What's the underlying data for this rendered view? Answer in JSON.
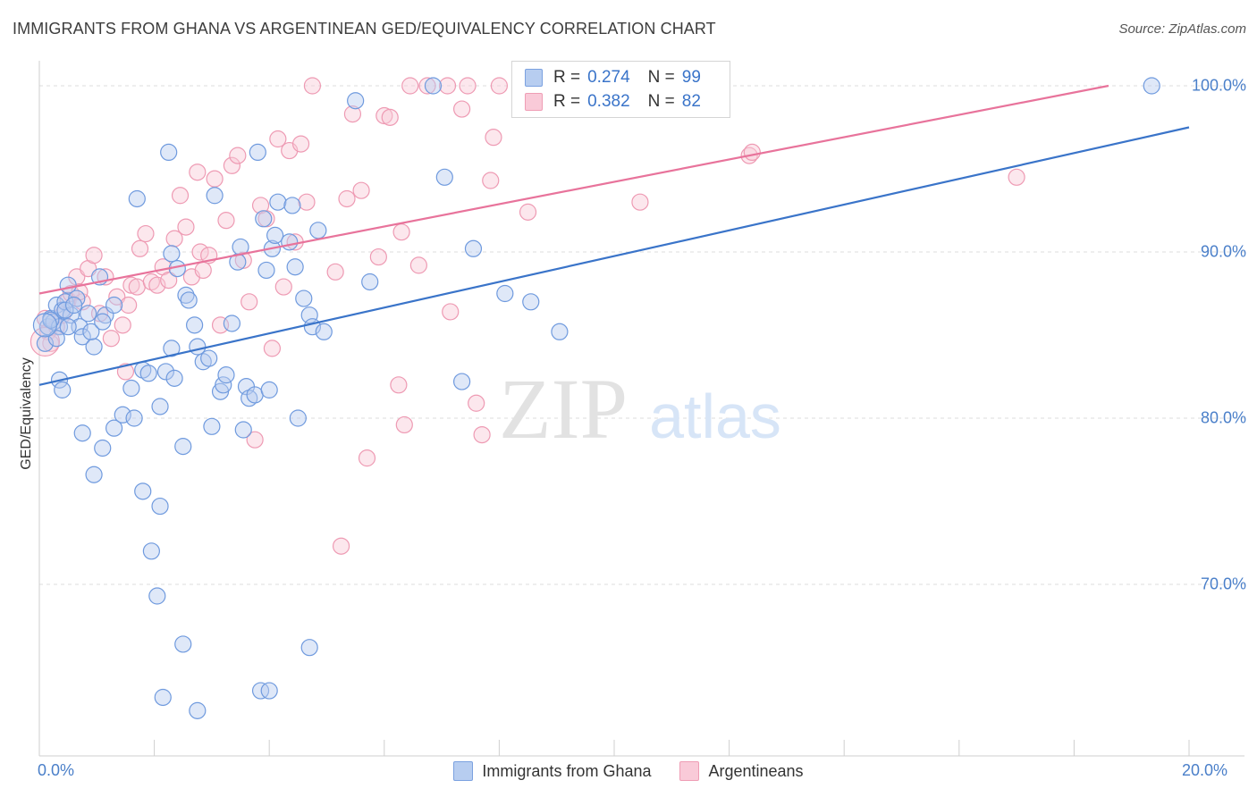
{
  "title": "IMMIGRANTS FROM GHANA VS ARGENTINEAN GED/EQUIVALENCY CORRELATION CHART",
  "source": "Source: ZipAtlas.com",
  "watermark": {
    "zip": "ZIP",
    "atlas": "atlas"
  },
  "colors": {
    "blue": "#3a74c9",
    "blue_fill": "#b7cdf0",
    "pink": "#e8739b",
    "pink_fill": "#f9cad8",
    "grid": "#dddddd",
    "tick_text": "#4a7fc9"
  },
  "stats": {
    "blue": {
      "r_label": "R =",
      "r_value": "0.274",
      "n_label": "N =",
      "n_value": "99"
    },
    "pink": {
      "r_label": "R =",
      "r_value": "0.382",
      "n_label": "N =",
      "n_value": "82"
    }
  },
  "legend": {
    "blue": "Immigrants from Ghana",
    "pink": "Argentineans"
  },
  "chart_data": {
    "type": "scatter",
    "title": "IMMIGRANTS FROM GHANA VS ARGENTINEAN GED/EQUIVALENCY CORRELATION CHART",
    "xlabel": "",
    "ylabel": "GED/Equivalency",
    "xlim": [
      0,
      20
    ],
    "ylim": [
      60.5,
      101.5
    ],
    "x_tick_labels": {
      "min": "0.0%",
      "max": "20.0%"
    },
    "y_ticks": [
      {
        "value": 100,
        "label": "100.0%"
      },
      {
        "value": 90,
        "label": "90.0%"
      },
      {
        "value": 80,
        "label": "80.0%"
      },
      {
        "value": 70,
        "label": "70.0%"
      }
    ],
    "legend_position": "bottom",
    "series": [
      {
        "name": "Immigrants from Ghana",
        "color": "#3a74c9",
        "trend": {
          "x": [
            0,
            20
          ],
          "y": [
            82.0,
            97.5
          ]
        },
        "points": [
          [
            0.1,
            84.5
          ],
          [
            0.15,
            85.5
          ],
          [
            0.2,
            86.0
          ],
          [
            0.25,
            85.8
          ],
          [
            0.3,
            86.8
          ],
          [
            0.35,
            85.5
          ],
          [
            0.4,
            86.5
          ],
          [
            0.45,
            87.0
          ],
          [
            0.5,
            88.0
          ],
          [
            0.55,
            86.2
          ],
          [
            0.65,
            87.2
          ],
          [
            0.7,
            85.5
          ],
          [
            0.75,
            84.9
          ],
          [
            0.85,
            86.3
          ],
          [
            0.95,
            84.3
          ],
          [
            1.05,
            88.5
          ],
          [
            1.15,
            86.2
          ],
          [
            1.3,
            86.8
          ],
          [
            0.35,
            82.3
          ],
          [
            0.4,
            81.7
          ],
          [
            0.75,
            79.1
          ],
          [
            0.95,
            76.6
          ],
          [
            1.1,
            78.2
          ],
          [
            1.3,
            79.4
          ],
          [
            1.45,
            80.2
          ],
          [
            1.65,
            80.0
          ],
          [
            1.8,
            75.6
          ],
          [
            1.95,
            72.0
          ],
          [
            2.05,
            69.3
          ],
          [
            2.1,
            74.7
          ],
          [
            1.6,
            81.8
          ],
          [
            1.8,
            82.9
          ],
          [
            1.9,
            82.7
          ],
          [
            2.1,
            80.7
          ],
          [
            2.2,
            82.8
          ],
          [
            2.3,
            84.2
          ],
          [
            2.35,
            82.4
          ],
          [
            2.5,
            78.3
          ],
          [
            2.4,
            89.0
          ],
          [
            2.3,
            89.9
          ],
          [
            2.55,
            87.4
          ],
          [
            2.6,
            87.1
          ],
          [
            2.7,
            85.6
          ],
          [
            2.75,
            84.3
          ],
          [
            2.85,
            83.4
          ],
          [
            2.95,
            83.6
          ],
          [
            3.0,
            79.5
          ],
          [
            3.05,
            93.4
          ],
          [
            3.15,
            81.6
          ],
          [
            3.2,
            82.0
          ],
          [
            3.25,
            82.6
          ],
          [
            3.35,
            85.7
          ],
          [
            3.45,
            89.4
          ],
          [
            3.5,
            90.3
          ],
          [
            3.55,
            79.3
          ],
          [
            3.6,
            81.9
          ],
          [
            3.65,
            81.2
          ],
          [
            3.75,
            81.4
          ],
          [
            3.8,
            96.0
          ],
          [
            3.9,
            92.0
          ],
          [
            3.95,
            88.9
          ],
          [
            4.0,
            81.7
          ],
          [
            4.05,
            90.2
          ],
          [
            4.1,
            91.0
          ],
          [
            4.15,
            93.0
          ],
          [
            4.35,
            90.6
          ],
          [
            4.4,
            92.8
          ],
          [
            4.45,
            89.1
          ],
          [
            4.5,
            80.0
          ],
          [
            4.6,
            87.2
          ],
          [
            4.7,
            86.2
          ],
          [
            4.75,
            85.5
          ],
          [
            4.85,
            91.3
          ],
          [
            4.95,
            85.2
          ],
          [
            5.5,
            99.1
          ],
          [
            5.75,
            88.2
          ],
          [
            6.85,
            100.0
          ],
          [
            7.05,
            94.5
          ],
          [
            7.35,
            82.2
          ],
          [
            7.55,
            90.2
          ],
          [
            8.1,
            87.5
          ],
          [
            8.55,
            87.0
          ],
          [
            9.05,
            85.2
          ],
          [
            2.25,
            96.0
          ],
          [
            1.7,
            93.2
          ],
          [
            2.5,
            66.4
          ],
          [
            3.85,
            63.6
          ],
          [
            4.0,
            63.6
          ],
          [
            2.15,
            63.2
          ],
          [
            2.75,
            62.4
          ],
          [
            4.7,
            66.2
          ],
          [
            19.35,
            100.0
          ],
          [
            0.45,
            86.5
          ],
          [
            0.5,
            85.5
          ],
          [
            0.6,
            86.8
          ],
          [
            0.9,
            85.2
          ],
          [
            1.1,
            85.8
          ],
          [
            0.2,
            85.9
          ],
          [
            0.3,
            84.8
          ]
        ]
      },
      {
        "name": "Argentineans",
        "color": "#e8739b",
        "trend": {
          "x": [
            0,
            18.6
          ],
          "y": [
            87.5,
            100.0
          ]
        },
        "points": [
          [
            0.1,
            86.0
          ],
          [
            0.15,
            85.2
          ],
          [
            0.2,
            84.5
          ],
          [
            0.3,
            85.5
          ],
          [
            0.4,
            86.2
          ],
          [
            0.5,
            87.1
          ],
          [
            0.55,
            87.5
          ],
          [
            0.65,
            88.5
          ],
          [
            0.75,
            87.0
          ],
          [
            0.85,
            89.0
          ],
          [
            0.95,
            89.8
          ],
          [
            1.05,
            86.3
          ],
          [
            1.15,
            88.5
          ],
          [
            1.25,
            84.8
          ],
          [
            1.35,
            87.3
          ],
          [
            1.45,
            85.6
          ],
          [
            1.5,
            82.8
          ],
          [
            1.55,
            86.8
          ],
          [
            1.6,
            88.0
          ],
          [
            1.7,
            87.9
          ],
          [
            1.75,
            90.2
          ],
          [
            1.85,
            91.1
          ],
          [
            1.95,
            88.2
          ],
          [
            2.05,
            88.0
          ],
          [
            2.15,
            89.1
          ],
          [
            2.25,
            88.3
          ],
          [
            2.35,
            90.8
          ],
          [
            2.45,
            93.4
          ],
          [
            2.55,
            91.5
          ],
          [
            2.65,
            88.5
          ],
          [
            2.75,
            94.8
          ],
          [
            2.8,
            90.0
          ],
          [
            2.85,
            88.9
          ],
          [
            2.95,
            89.8
          ],
          [
            3.05,
            94.4
          ],
          [
            3.15,
            85.6
          ],
          [
            3.25,
            91.9
          ],
          [
            3.35,
            95.2
          ],
          [
            3.45,
            95.8
          ],
          [
            3.55,
            89.5
          ],
          [
            3.65,
            87.0
          ],
          [
            3.75,
            78.7
          ],
          [
            3.85,
            92.8
          ],
          [
            3.95,
            92.0
          ],
          [
            4.05,
            84.2
          ],
          [
            4.15,
            96.8
          ],
          [
            4.25,
            87.9
          ],
          [
            4.35,
            96.1
          ],
          [
            4.45,
            90.6
          ],
          [
            4.55,
            96.5
          ],
          [
            4.65,
            93.0
          ],
          [
            4.75,
            100.0
          ],
          [
            5.15,
            88.8
          ],
          [
            5.25,
            72.3
          ],
          [
            5.35,
            93.2
          ],
          [
            5.45,
            98.3
          ],
          [
            5.6,
            93.7
          ],
          [
            5.7,
            77.6
          ],
          [
            5.9,
            89.7
          ],
          [
            6.0,
            98.2
          ],
          [
            6.1,
            98.1
          ],
          [
            6.25,
            82.0
          ],
          [
            6.3,
            91.2
          ],
          [
            6.35,
            79.6
          ],
          [
            6.45,
            100.0
          ],
          [
            6.6,
            89.2
          ],
          [
            6.75,
            100.0
          ],
          [
            7.1,
            100.0
          ],
          [
            7.15,
            86.4
          ],
          [
            7.35,
            98.6
          ],
          [
            7.45,
            100.0
          ],
          [
            7.6,
            80.9
          ],
          [
            7.7,
            79.0
          ],
          [
            7.85,
            94.3
          ],
          [
            7.9,
            96.9
          ],
          [
            8.0,
            100.0
          ],
          [
            8.5,
            92.4
          ],
          [
            10.45,
            93.0
          ],
          [
            12.35,
            95.8
          ],
          [
            12.4,
            96.0
          ],
          [
            17.0,
            94.5
          ],
          [
            0.7,
            87.6
          ]
        ]
      }
    ]
  }
}
